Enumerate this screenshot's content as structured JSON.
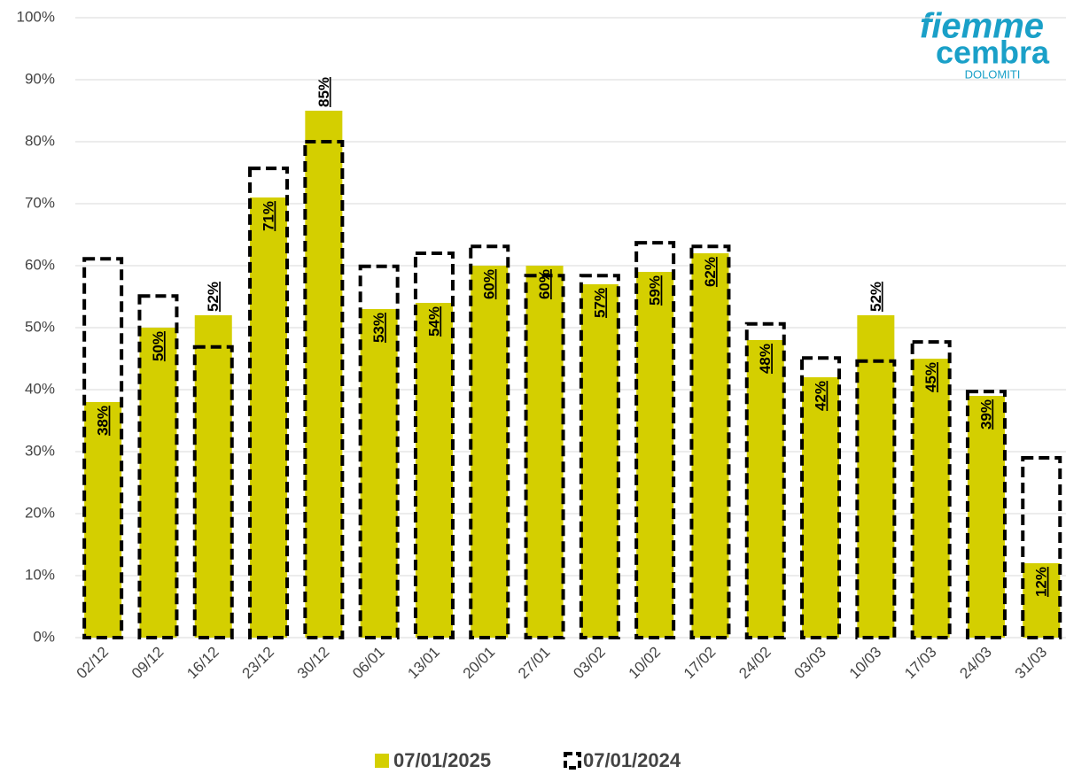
{
  "chart_data": {
    "type": "bar",
    "logo": {
      "line1": "fiemme",
      "line2": "cembra",
      "line3": "DOLOMITI"
    },
    "categories": [
      "02/12",
      "09/12",
      "16/12",
      "23/12",
      "30/12",
      "06/01",
      "13/01",
      "20/01",
      "27/01",
      "03/02",
      "10/02",
      "17/02",
      "24/02",
      "03/03",
      "10/03",
      "17/03",
      "24/03",
      "31/03"
    ],
    "series": [
      {
        "name": "07/01/2025",
        "color": "#d4cf00",
        "style": "filled",
        "values": [
          38,
          50,
          52,
          71,
          85,
          53,
          54,
          60,
          60,
          57,
          59,
          62,
          48,
          42,
          52,
          45,
          39,
          12
        ],
        "value_labels": [
          "38%",
          "50%",
          "52%",
          "71%",
          "85%",
          "53%",
          "54%",
          "60%",
          "60%",
          "57%",
          "59%",
          "62%",
          "48%",
          "42%",
          "52%",
          "45%",
          "39%",
          "12%"
        ]
      },
      {
        "name": "07/01/2024",
        "color": "#000000",
        "style": "dashed",
        "values": [
          61.1,
          55.1,
          46.9,
          75.7,
          80,
          59.9,
          62,
          63.1,
          58.4,
          58.4,
          63.7,
          63.1,
          50.6,
          45.1,
          44.6,
          47.7,
          39.7,
          29
        ]
      }
    ],
    "ylim": [
      0,
      100
    ],
    "yticks": [
      {
        "value": 0,
        "label": "0%"
      },
      {
        "value": 10,
        "label": "10%"
      },
      {
        "value": 20,
        "label": "20%"
      },
      {
        "value": 30,
        "label": "30%"
      },
      {
        "value": 40,
        "label": "40%"
      },
      {
        "value": 50,
        "label": "50%"
      },
      {
        "value": 60,
        "label": "60%"
      },
      {
        "value": 70,
        "label": "70%"
      },
      {
        "value": 80,
        "label": "80%"
      },
      {
        "value": 90,
        "label": "90%"
      },
      {
        "value": 100,
        "label": "100%"
      }
    ],
    "grid": true,
    "legend": "bottom"
  }
}
